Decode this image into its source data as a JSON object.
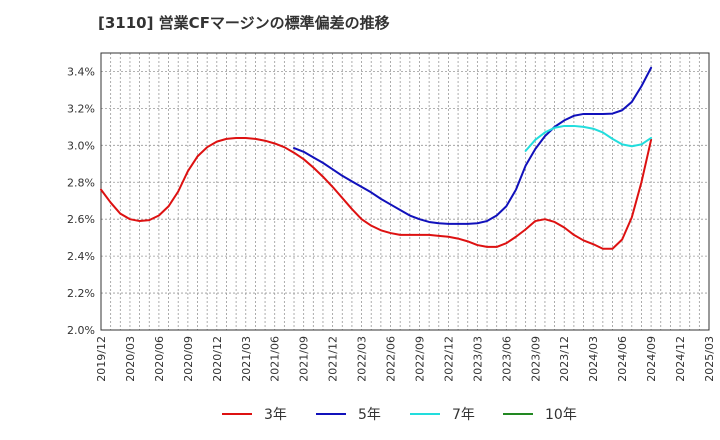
{
  "chart_data": {
    "type": "line",
    "title": "[3110]  営業CFマージンの標準偏差の推移",
    "xlabel": "",
    "ylabel": "",
    "ylim": [
      2.0,
      3.5
    ],
    "y_ticks": [
      2.0,
      2.2,
      2.4,
      2.6,
      2.8,
      3.0,
      3.2,
      3.4
    ],
    "y_tick_labels": [
      "2.0%",
      "2.2%",
      "2.4%",
      "2.6%",
      "2.8%",
      "3.0%",
      "3.2%",
      "3.4%"
    ],
    "x_tick_labels": [
      "2019/12",
      "2020/03",
      "2020/06",
      "2020/09",
      "2020/12",
      "2021/03",
      "2021/06",
      "2021/09",
      "2021/12",
      "2022/03",
      "2022/06",
      "2022/09",
      "2022/12",
      "2023/03",
      "2023/06",
      "2023/09",
      "2023/12",
      "2024/03",
      "2024/06",
      "2024/09",
      "2024/12",
      "2025/03"
    ],
    "grid": true,
    "legend_position": "bottom",
    "series": [
      {
        "name": "3年",
        "color": "#dd1111",
        "x": [
          "2019/12",
          "2020/01",
          "2020/02",
          "2020/03",
          "2020/04",
          "2020/05",
          "2020/06",
          "2020/07",
          "2020/08",
          "2020/09",
          "2020/10",
          "2020/11",
          "2020/12",
          "2021/01",
          "2021/02",
          "2021/03",
          "2021/04",
          "2021/05",
          "2021/06",
          "2021/07",
          "2021/08",
          "2021/09",
          "2021/10",
          "2021/11",
          "2021/12",
          "2022/01",
          "2022/02",
          "2022/03",
          "2022/04",
          "2022/05",
          "2022/06",
          "2022/07",
          "2022/08",
          "2022/09",
          "2022/10",
          "2022/11",
          "2022/12",
          "2023/01",
          "2023/02",
          "2023/03",
          "2023/04",
          "2023/05",
          "2023/06",
          "2023/07",
          "2023/08",
          "2023/09",
          "2023/10",
          "2023/11",
          "2023/12",
          "2024/01",
          "2024/02",
          "2024/03",
          "2024/04",
          "2024/05",
          "2024/06",
          "2024/07",
          "2024/08",
          "2024/09"
        ],
        "values": [
          2.76,
          2.69,
          2.63,
          2.6,
          2.59,
          2.595,
          2.62,
          2.67,
          2.75,
          2.86,
          2.94,
          2.99,
          3.02,
          3.035,
          3.04,
          3.04,
          3.035,
          3.025,
          3.01,
          2.99,
          2.96,
          2.925,
          2.88,
          2.83,
          2.775,
          2.715,
          2.655,
          2.6,
          2.565,
          2.54,
          2.525,
          2.515,
          2.515,
          2.515,
          2.515,
          2.51,
          2.505,
          2.495,
          2.48,
          2.46,
          2.45,
          2.45,
          2.47,
          2.505,
          2.545,
          2.59,
          2.6,
          2.585,
          2.555,
          2.515,
          2.485,
          2.465,
          2.44,
          2.44,
          2.49,
          2.61,
          2.8,
          3.03
        ]
      },
      {
        "name": "5年",
        "color": "#1111bb",
        "x": [
          "2021/08",
          "2021/09",
          "2021/10",
          "2021/11",
          "2021/12",
          "2022/01",
          "2022/02",
          "2022/03",
          "2022/04",
          "2022/05",
          "2022/06",
          "2022/07",
          "2022/08",
          "2022/09",
          "2022/10",
          "2022/11",
          "2022/12",
          "2023/01",
          "2023/02",
          "2023/03",
          "2023/04",
          "2023/05",
          "2023/06",
          "2023/07",
          "2023/08",
          "2023/09",
          "2023/10",
          "2023/11",
          "2023/12",
          "2024/01",
          "2024/02",
          "2024/03",
          "2024/04",
          "2024/05",
          "2024/06",
          "2024/07",
          "2024/08",
          "2024/09"
        ],
        "values": [
          2.985,
          2.965,
          2.935,
          2.905,
          2.87,
          2.835,
          2.805,
          2.775,
          2.745,
          2.71,
          2.68,
          2.65,
          2.62,
          2.6,
          2.585,
          2.578,
          2.575,
          2.575,
          2.575,
          2.578,
          2.59,
          2.62,
          2.67,
          2.76,
          2.89,
          2.98,
          3.05,
          3.1,
          3.135,
          3.16,
          3.17,
          3.17,
          3.17,
          3.172,
          3.19,
          3.235,
          3.32,
          3.42
        ]
      },
      {
        "name": "7年",
        "color": "#22dddd",
        "x": [
          "2023/08",
          "2023/09",
          "2023/10",
          "2023/11",
          "2023/12",
          "2024/01",
          "2024/02",
          "2024/03",
          "2024/04",
          "2024/05",
          "2024/06",
          "2024/07",
          "2024/08",
          "2024/09"
        ],
        "values": [
          2.97,
          3.03,
          3.07,
          3.095,
          3.105,
          3.105,
          3.1,
          3.09,
          3.07,
          3.035,
          3.005,
          2.995,
          3.005,
          3.04
        ]
      },
      {
        "name": "10年",
        "color": "#228822",
        "x": [],
        "values": []
      }
    ]
  }
}
